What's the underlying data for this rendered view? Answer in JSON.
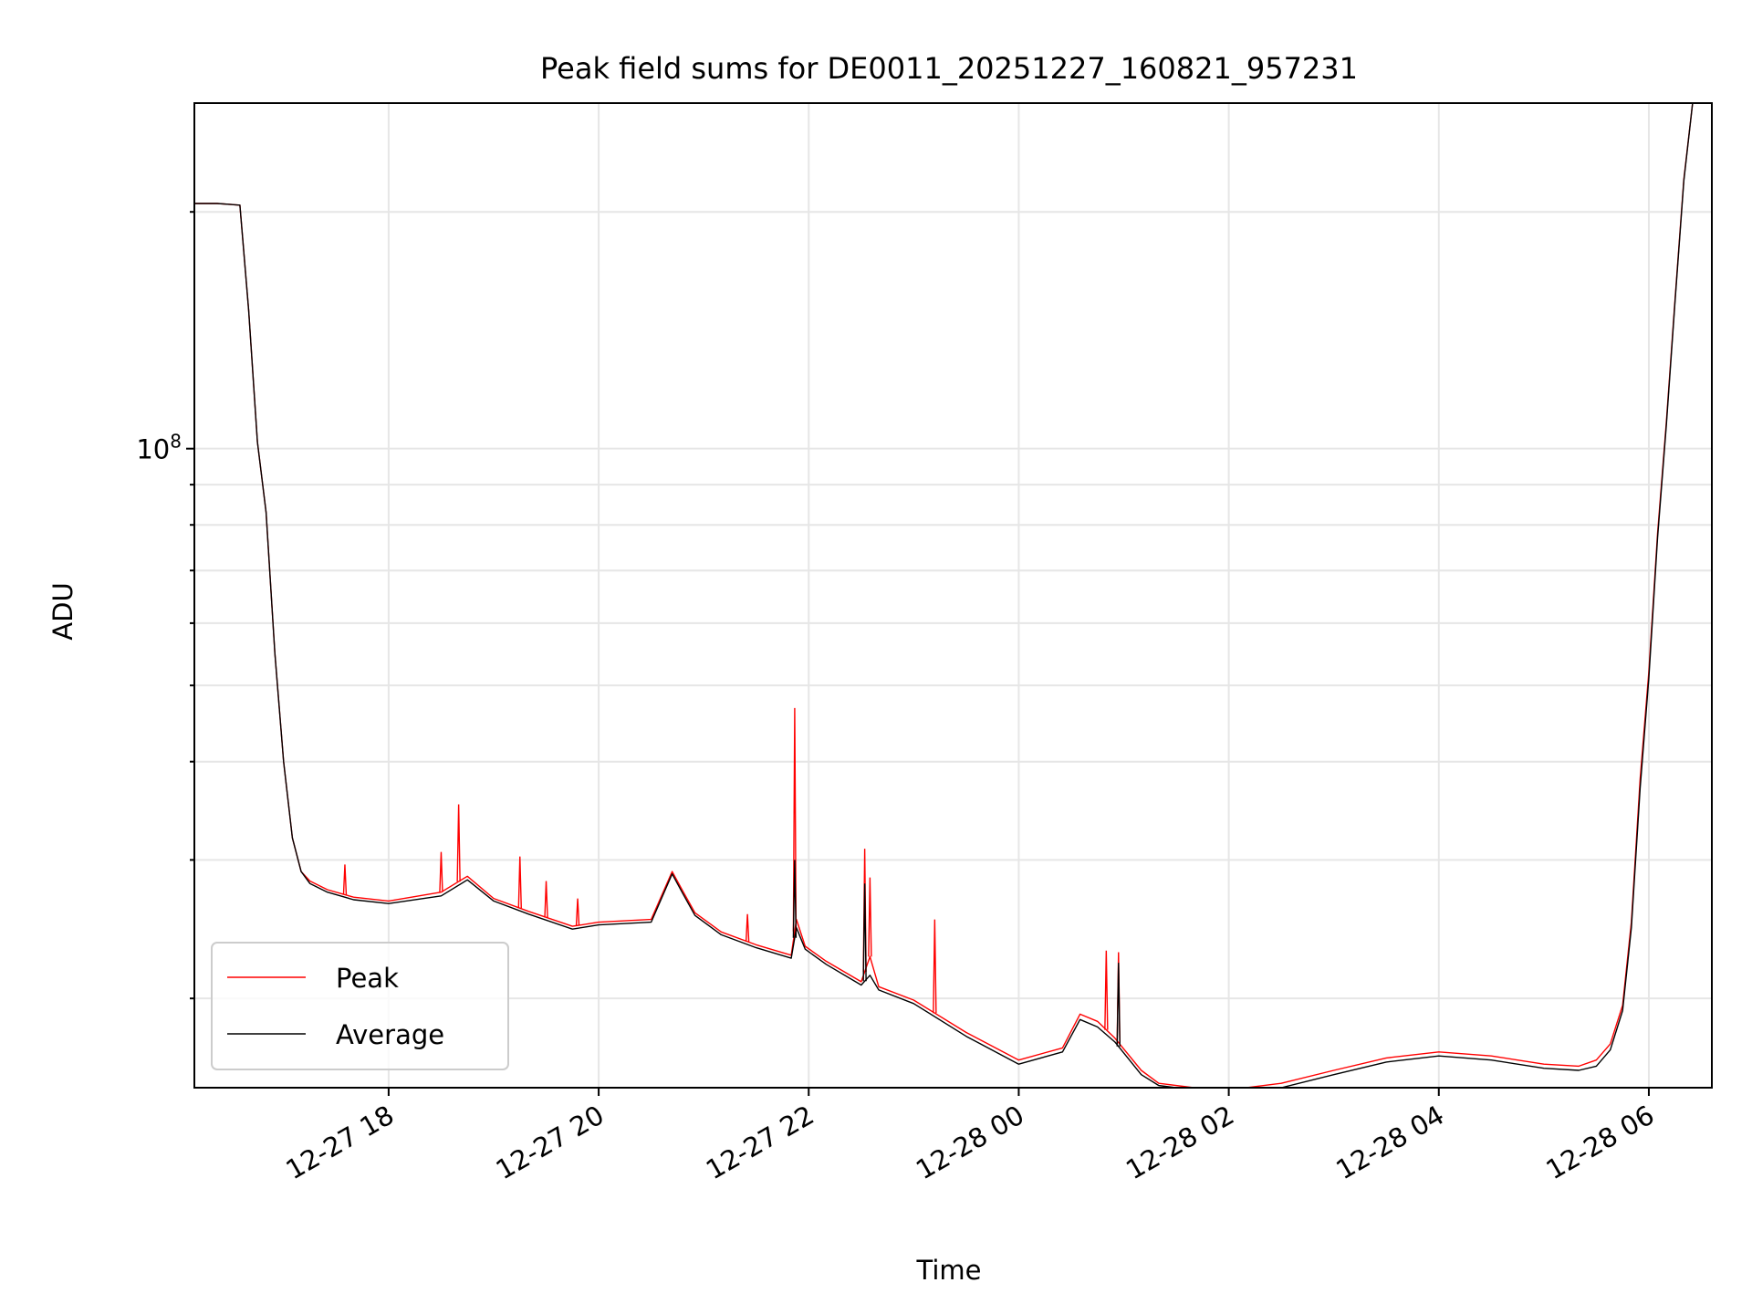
{
  "chart_data": {
    "type": "line",
    "title": "Peak field sums for DE0011_20251227_160821_957231",
    "xlabel": "Time",
    "ylabel": "ADU",
    "yscale": "log",
    "grid": true,
    "legend_position": "lower-left",
    "xlim": [
      "2025-12-27 16:09",
      "2025-12-28 06:36"
    ],
    "ylim": [
      15400000,
      275000000
    ],
    "x_ticks": [
      {
        "value": "2025-12-27 18:00",
        "label": "12-27 18"
      },
      {
        "value": "2025-12-27 20:00",
        "label": "12-27 20"
      },
      {
        "value": "2025-12-27 22:00",
        "label": "12-27 22"
      },
      {
        "value": "2025-12-28 00:00",
        "label": "12-28 00"
      },
      {
        "value": "2025-12-28 02:00",
        "label": "12-28 02"
      },
      {
        "value": "2025-12-28 04:00",
        "label": "12-28 04"
      },
      {
        "value": "2025-12-28 06:00",
        "label": "12-28 06"
      }
    ],
    "y_ticks": [
      {
        "value": 100000000,
        "base": "10",
        "exp": "8"
      }
    ],
    "series": [
      {
        "name": "Peak",
        "color": "#ff0000",
        "x": [
          "2025-12-27 16:09",
          "2025-12-27 16:22",
          "2025-12-27 16:35",
          "2025-12-27 16:40",
          "2025-12-27 16:45",
          "2025-12-27 16:50",
          "2025-12-27 16:55",
          "2025-12-27 17:00",
          "2025-12-27 17:05",
          "2025-12-27 17:10",
          "2025-12-27 17:15",
          "2025-12-27 17:25",
          "2025-12-27 17:40",
          "2025-12-27 18:00",
          "2025-12-27 18:30",
          "2025-12-27 18:45",
          "2025-12-27 19:00",
          "2025-12-27 19:20",
          "2025-12-27 19:45",
          "2025-12-27 20:00",
          "2025-12-27 20:30",
          "2025-12-27 20:42",
          "2025-12-27 20:48",
          "2025-12-27 20:55",
          "2025-12-27 21:10",
          "2025-12-27 21:30",
          "2025-12-27 21:50",
          "2025-12-27 21:53",
          "2025-12-27 21:58",
          "2025-12-27 22:10",
          "2025-12-27 22:30",
          "2025-12-27 22:35",
          "2025-12-27 22:40",
          "2025-12-27 23:00",
          "2025-12-27 23:30",
          "2025-12-28 00:00",
          "2025-12-28 00:25",
          "2025-12-28 00:35",
          "2025-12-28 00:45",
          "2025-12-28 00:55",
          "2025-12-28 01:10",
          "2025-12-28 01:20",
          "2025-12-28 01:40",
          "2025-12-28 02:00",
          "2025-12-28 02:30",
          "2025-12-28 03:00",
          "2025-12-28 03:30",
          "2025-12-28 04:00",
          "2025-12-28 04:30",
          "2025-12-28 05:00",
          "2025-12-28 05:20",
          "2025-12-28 05:30",
          "2025-12-28 05:38",
          "2025-12-28 05:45",
          "2025-12-28 05:50",
          "2025-12-28 05:55",
          "2025-12-28 06:00",
          "2025-12-28 06:05",
          "2025-12-28 06:10",
          "2025-12-28 06:15",
          "2025-12-28 06:20",
          "2025-12-28 06:25",
          "2025-12-28 06:26"
        ],
        "values": [
          205000000,
          205000000,
          204000000,
          150000000,
          102000000,
          83000000,
          55000000,
          40000000,
          32000000,
          29000000,
          28200000,
          27500000,
          26900000,
          26600000,
          27300000,
          28600000,
          26800000,
          25800000,
          24700000,
          25000000,
          25200000,
          29000000,
          27400000,
          25700000,
          24300000,
          23400000,
          22700000,
          25200000,
          23300000,
          22300000,
          21000000,
          22600000,
          20700000,
          19900000,
          18100000,
          16700000,
          17300000,
          19100000,
          18700000,
          17800000,
          16200000,
          15600000,
          15400000,
          15300000,
          15600000,
          16200000,
          16800000,
          17100000,
          16900000,
          16500000,
          16400000,
          16700000,
          17500000,
          19600000,
          25000000,
          38000000,
          52000000,
          78000000,
          108000000,
          155000000,
          220000000,
          275000000,
          275000000
        ]
      },
      {
        "name": "Average",
        "color": "#000000",
        "x": [
          "2025-12-27 16:09",
          "2025-12-27 16:22",
          "2025-12-27 16:35",
          "2025-12-27 16:40",
          "2025-12-27 16:45",
          "2025-12-27 16:50",
          "2025-12-27 16:55",
          "2025-12-27 17:00",
          "2025-12-27 17:05",
          "2025-12-27 17:10",
          "2025-12-27 17:15",
          "2025-12-27 17:25",
          "2025-12-27 17:40",
          "2025-12-27 18:00",
          "2025-12-27 18:30",
          "2025-12-27 18:45",
          "2025-12-27 19:00",
          "2025-12-27 19:20",
          "2025-12-27 19:45",
          "2025-12-27 20:00",
          "2025-12-27 20:30",
          "2025-12-27 20:42",
          "2025-12-27 20:48",
          "2025-12-27 20:55",
          "2025-12-27 21:10",
          "2025-12-27 21:30",
          "2025-12-27 21:50",
          "2025-12-27 21:53",
          "2025-12-27 21:58",
          "2025-12-27 22:10",
          "2025-12-27 22:30",
          "2025-12-27 22:35",
          "2025-12-27 22:40",
          "2025-12-27 23:00",
          "2025-12-27 23:30",
          "2025-12-28 00:00",
          "2025-12-28 00:25",
          "2025-12-28 00:35",
          "2025-12-28 00:45",
          "2025-12-28 00:55",
          "2025-12-28 01:10",
          "2025-12-28 01:20",
          "2025-12-28 01:40",
          "2025-12-28 02:00",
          "2025-12-28 02:30",
          "2025-12-28 03:00",
          "2025-12-28 03:30",
          "2025-12-28 04:00",
          "2025-12-28 04:30",
          "2025-12-28 05:00",
          "2025-12-28 05:20",
          "2025-12-28 05:30",
          "2025-12-28 05:38",
          "2025-12-28 05:45",
          "2025-12-28 05:50",
          "2025-12-28 05:55",
          "2025-12-28 06:00",
          "2025-12-28 06:05",
          "2025-12-28 06:10",
          "2025-12-28 06:15",
          "2025-12-28 06:20",
          "2025-12-28 06:25",
          "2025-12-28 06:26"
        ],
        "values": [
          205000000,
          205000000,
          204000000,
          150000000,
          102000000,
          83000000,
          55000000,
          40000000,
          32000000,
          29000000,
          28000000,
          27300000,
          26700000,
          26400000,
          27000000,
          28300000,
          26600000,
          25600000,
          24500000,
          24800000,
          25000000,
          28800000,
          27200000,
          25500000,
          24100000,
          23200000,
          22500000,
          24600000,
          23100000,
          22100000,
          20800000,
          21400000,
          20500000,
          19700000,
          17900000,
          16500000,
          17100000,
          18800000,
          18400000,
          17600000,
          16000000,
          15500000,
          15300000,
          15200000,
          15400000,
          16000000,
          16600000,
          16900000,
          16700000,
          16300000,
          16200000,
          16400000,
          17200000,
          19300000,
          24600000,
          37000000,
          51000000,
          77000000,
          107000000,
          154000000,
          219000000,
          275000000,
          275000000
        ]
      }
    ],
    "spikes": [
      {
        "series": "Peak",
        "x": "2025-12-27 17:35",
        "value": 29600000
      },
      {
        "series": "Peak",
        "x": "2025-12-27 18:30",
        "value": 30700000
      },
      {
        "series": "Peak",
        "x": "2025-12-27 18:40",
        "value": 35300000
      },
      {
        "series": "Peak",
        "x": "2025-12-27 19:15",
        "value": 30300000
      },
      {
        "series": "Peak",
        "x": "2025-12-27 19:30",
        "value": 28200000
      },
      {
        "series": "Peak",
        "x": "2025-12-27 19:48",
        "value": 26800000
      },
      {
        "series": "Peak",
        "x": "2025-12-27 21:25",
        "value": 25600000
      },
      {
        "series": "Peak",
        "x": "2025-12-27 21:52",
        "value": 46800000
      },
      {
        "series": "Peak",
        "x": "2025-12-27 22:32",
        "value": 31000000
      },
      {
        "series": "Peak",
        "x": "2025-12-27 22:35",
        "value": 28500000
      },
      {
        "series": "Peak",
        "x": "2025-12-27 23:12",
        "value": 25200000
      },
      {
        "series": "Peak",
        "x": "2025-12-28 00:50",
        "value": 23000000
      },
      {
        "series": "Peak",
        "x": "2025-12-28 00:57",
        "value": 22900000
      },
      {
        "series": "Average",
        "x": "2025-12-27 21:52",
        "value": 30000000
      },
      {
        "series": "Average",
        "x": "2025-12-27 22:32",
        "value": 28000000
      },
      {
        "series": "Average",
        "x": "2025-12-28 00:57",
        "value": 22200000
      }
    ]
  }
}
